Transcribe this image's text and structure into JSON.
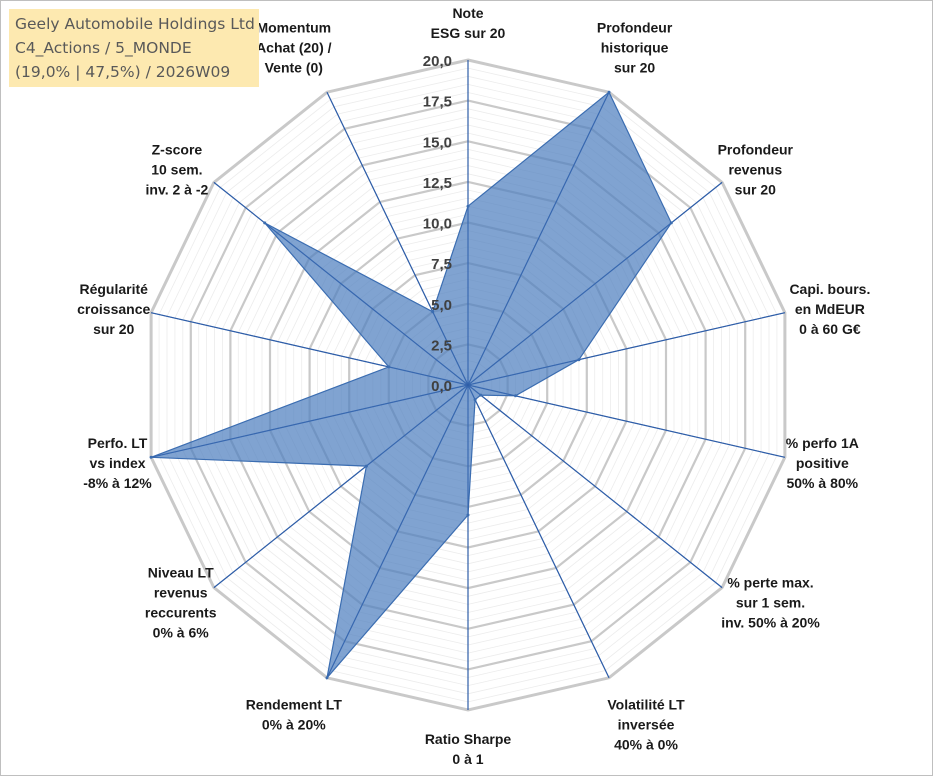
{
  "header": {
    "company": "Geely Automobile Holdings Ltd",
    "portfolio": "C4_Actions / 5_MONDE",
    "stats": "(19,0% | 47,5%) / 2026W09"
  },
  "colors": {
    "fill": "#4f7fbf",
    "spoke": "#2e5ea8",
    "ring": "#c9c9c9",
    "title_bg": "#fde9b0"
  },
  "chart_data": {
    "type": "radar",
    "title": "Geely Automobile Holdings Ltd",
    "rmin": 0,
    "rmax": 20,
    "ticks": [
      "0,0",
      "2,5",
      "5,0",
      "7,5",
      "10,0",
      "12,5",
      "15,0",
      "17,5",
      "20,0"
    ],
    "tick_values": [
      0,
      2.5,
      5,
      7.5,
      10,
      12.5,
      15,
      17.5,
      20
    ],
    "axes": [
      {
        "label": [
          "Note",
          "ESG sur 20"
        ],
        "value": 11
      },
      {
        "label": [
          "Profondeur",
          "historique",
          "sur 20"
        ],
        "value": 20
      },
      {
        "label": [
          "Profondeur",
          "revenus",
          "sur 20"
        ],
        "value": 16
      },
      {
        "label": [
          "Capi. bours.",
          "en MdEUR",
          "0 à 60 G€"
        ],
        "value": 7
      },
      {
        "label": [
          "% perfo 1A",
          "positive",
          "50% à 80%"
        ],
        "value": 3
      },
      {
        "label": [
          "% perte max.",
          "sur 1 sem.",
          "inv. 50% à 20%"
        ],
        "value": 1
      },
      {
        "label": [
          "Volatilité LT",
          "inversée",
          "40% à 0%"
        ],
        "value": 1
      },
      {
        "label": [
          "Ratio Sharpe",
          "0 à 1"
        ],
        "value": 8
      },
      {
        "label": [
          "Rendement LT",
          "0% à 20%"
        ],
        "value": 20
      },
      {
        "label": [
          "Niveau LT",
          "revenus",
          "reccurents",
          "0% à 6%"
        ],
        "value": 8
      },
      {
        "label": [
          "Perfo. LT",
          "vs index",
          "-8% à 12%"
        ],
        "value": 20
      },
      {
        "label": [
          "Régularité",
          "croissance",
          "sur 20"
        ],
        "value": 5
      },
      {
        "label": [
          "Z-score",
          "10 sem.",
          "inv. 2 à -2"
        ],
        "value": 16
      },
      {
        "label": [
          "Momentum",
          "Achat (20) /",
          "Vente (0)"
        ],
        "value": 5
      }
    ]
  }
}
